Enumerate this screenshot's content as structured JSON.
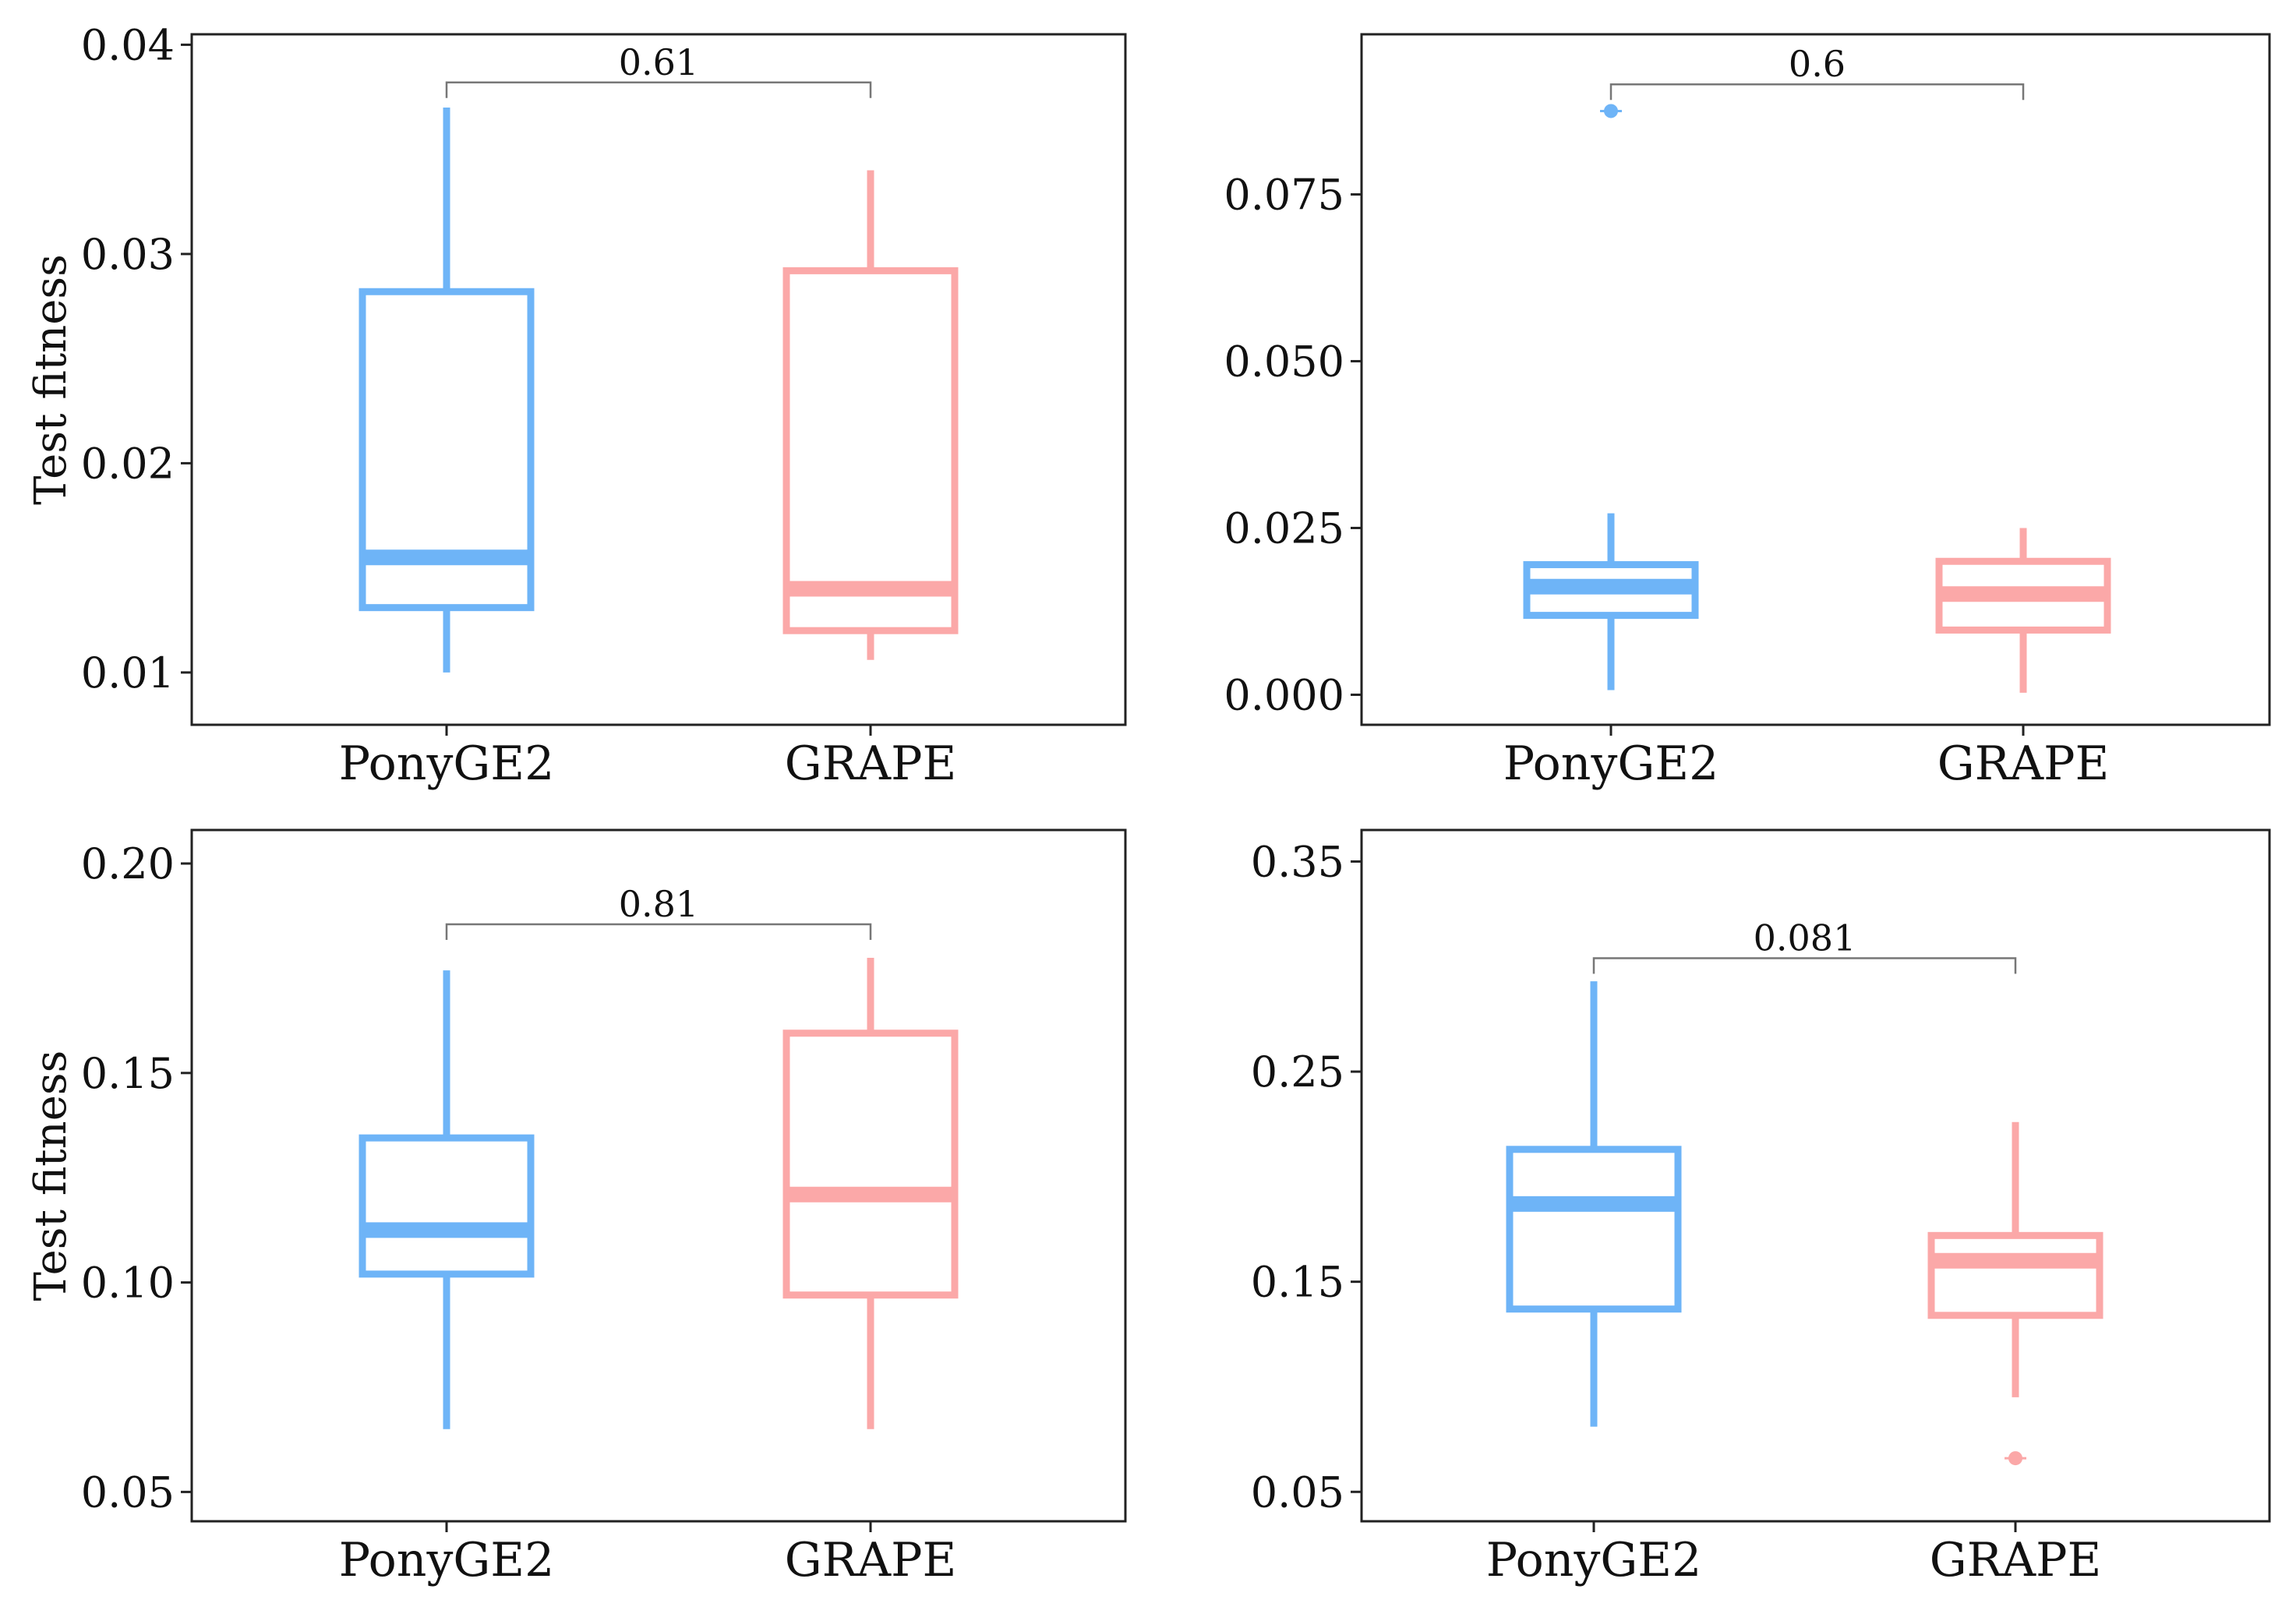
{
  "colors": {
    "PonyGE2": "#6eb4f7",
    "GRAPE": "#fba8a8",
    "frame": "#222222",
    "bracket": "#777777"
  },
  "chart_data": [
    {
      "type": "box",
      "categories": [
        "PonyGE2",
        "GRAPE"
      ],
      "ylabel": "Test fitness",
      "ylim": [
        0.0075,
        0.0405
      ],
      "yticks": [
        0.01,
        0.02,
        0.03,
        0.04
      ],
      "ytick_labels": [
        "0.01",
        "0.02",
        "0.03",
        "0.04"
      ],
      "boxes": [
        {
          "name": "PonyGE2",
          "whisker_low": 0.01,
          "q1": 0.0131,
          "median": 0.0155,
          "q3": 0.0282,
          "whisker_high": 0.037,
          "outliers": []
        },
        {
          "name": "GRAPE",
          "whisker_low": 0.0106,
          "q1": 0.012,
          "median": 0.014,
          "q3": 0.0292,
          "whisker_high": 0.034,
          "outliers": []
        }
      ],
      "pvalue": "0.61",
      "bracket_y": 0.0382
    },
    {
      "type": "box",
      "categories": [
        "PonyGE2",
        "GRAPE"
      ],
      "ylabel": "",
      "ylim": [
        -0.0045,
        0.099
      ],
      "yticks": [
        0.0,
        0.025,
        0.05,
        0.075
      ],
      "ytick_labels": [
        "0.000",
        "0.025",
        "0.050",
        "0.075"
      ],
      "boxes": [
        {
          "name": "PonyGE2",
          "whisker_low": 0.0007,
          "q1": 0.0119,
          "median": 0.0162,
          "q3": 0.0195,
          "whisker_high": 0.0272,
          "outliers": [
            0.0875
          ]
        },
        {
          "name": "GRAPE",
          "whisker_low": 0.0003,
          "q1": 0.0097,
          "median": 0.0151,
          "q3": 0.02,
          "whisker_high": 0.025,
          "outliers": []
        }
      ],
      "pvalue": "0.6",
      "bracket_y": 0.0915
    },
    {
      "type": "box",
      "categories": [
        "PonyGE2",
        "GRAPE"
      ],
      "ylabel": "Test fitness",
      "ylim": [
        0.043,
        0.208
      ],
      "yticks": [
        0.05,
        0.1,
        0.15,
        0.2
      ],
      "ytick_labels": [
        "0.05",
        "0.10",
        "0.15",
        "0.20"
      ],
      "boxes": [
        {
          "name": "PonyGE2",
          "whisker_low": 0.065,
          "q1": 0.102,
          "median": 0.1125,
          "q3": 0.1345,
          "whisker_high": 0.1745,
          "outliers": []
        },
        {
          "name": "GRAPE",
          "whisker_low": 0.065,
          "q1": 0.097,
          "median": 0.121,
          "q3": 0.1595,
          "whisker_high": 0.1775,
          "outliers": []
        }
      ],
      "pvalue": "0.81",
      "bracket_y": 0.1855
    },
    {
      "type": "box",
      "categories": [
        "PonyGE2",
        "GRAPE"
      ],
      "ylabel": "",
      "ylim": [
        0.036,
        0.365
      ],
      "yticks": [
        0.05,
        0.15,
        0.25,
        0.35
      ],
      "ytick_labels": [
        "0.05",
        "0.15",
        "0.25",
        "0.35"
      ],
      "boxes": [
        {
          "name": "PonyGE2",
          "whisker_low": 0.081,
          "q1": 0.137,
          "median": 0.187,
          "q3": 0.213,
          "whisker_high": 0.293,
          "outliers": []
        },
        {
          "name": "GRAPE",
          "whisker_low": 0.095,
          "q1": 0.134,
          "median": 0.16,
          "q3": 0.172,
          "whisker_high": 0.226,
          "outliers": [
            0.066
          ]
        }
      ],
      "pvalue": "0.081",
      "bracket_y": 0.304
    }
  ]
}
